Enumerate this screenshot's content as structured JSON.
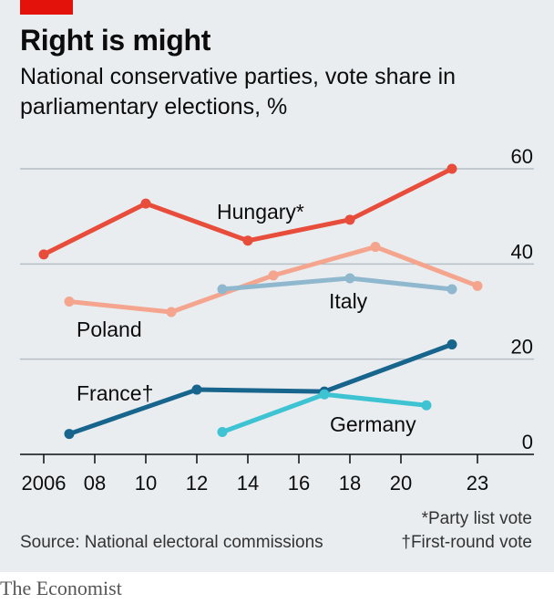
{
  "header": {
    "title": "Right is might",
    "subtitle": "National conservative parties, vote share in parliamentary elections, %"
  },
  "footer": {
    "note_party_list": "*Party list vote",
    "note_first_round": "†First-round vote",
    "source": "Source: National electoral commissions",
    "brand": "The Economist"
  },
  "colors": {
    "panel": "#e9edf0",
    "brand_red": "#e3120b"
  },
  "chart_data": {
    "type": "line",
    "title": "Right is might",
    "subtitle": "National conservative parties, vote share in parliamentary elections, %",
    "xlim": [
      2006,
      2023
    ],
    "ylim": [
      0,
      60
    ],
    "x_ticks": [
      {
        "value": 2006,
        "label": "2006"
      },
      {
        "value": 2008,
        "label": "08"
      },
      {
        "value": 2010,
        "label": "10"
      },
      {
        "value": 2012,
        "label": "12"
      },
      {
        "value": 2014,
        "label": "14"
      },
      {
        "value": 2016,
        "label": "16"
      },
      {
        "value": 2018,
        "label": "18"
      },
      {
        "value": 2020,
        "label": "20"
      },
      {
        "value": 2023,
        "label": "23"
      }
    ],
    "y_ticks": [
      {
        "value": 0,
        "label": "0"
      },
      {
        "value": 20,
        "label": "20"
      },
      {
        "value": 40,
        "label": "40"
      },
      {
        "value": 60,
        "label": "60"
      }
    ],
    "grid": true,
    "legend": "direct labels on lines",
    "series": [
      {
        "name": "Hungary*",
        "color": "#e84c3a",
        "points": [
          [
            2006,
            42.0
          ],
          [
            2010,
            52.7
          ],
          [
            2014,
            44.9
          ],
          [
            2018,
            49.3
          ],
          [
            2022,
            60.0
          ]
        ]
      },
      {
        "name": "Poland",
        "color": "#f5a58e",
        "points": [
          [
            2007,
            32.1
          ],
          [
            2011,
            29.9
          ],
          [
            2015,
            37.6
          ],
          [
            2019,
            43.6
          ],
          [
            2023,
            35.4
          ]
        ]
      },
      {
        "name": "Italy",
        "color": "#8fb8cf",
        "points": [
          [
            2013,
            34.7
          ],
          [
            2018,
            37.0
          ],
          [
            2022,
            34.7
          ]
        ]
      },
      {
        "name": "France†",
        "color": "#17648d",
        "points": [
          [
            2007,
            4.3
          ],
          [
            2012,
            13.6
          ],
          [
            2017,
            13.2
          ],
          [
            2022,
            23.1
          ]
        ]
      },
      {
        "name": "Germany",
        "color": "#3ec3d3",
        "points": [
          [
            2013,
            4.7
          ],
          [
            2017,
            12.6
          ],
          [
            2021,
            10.3
          ]
        ]
      }
    ]
  }
}
